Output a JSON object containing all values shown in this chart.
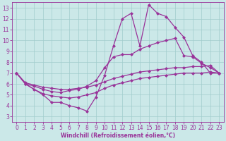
{
  "background_color": "#cbe8e8",
  "grid_color": "#a0cccc",
  "line_color": "#993399",
  "xlabel": "Windchill (Refroidissement éolien,°C)",
  "xlim": [
    -0.5,
    23.5
  ],
  "ylim": [
    2.5,
    13.5
  ],
  "yticks": [
    3,
    4,
    5,
    6,
    7,
    8,
    9,
    10,
    11,
    12,
    13
  ],
  "xticks": [
    0,
    1,
    2,
    3,
    4,
    5,
    6,
    7,
    8,
    9,
    10,
    11,
    12,
    13,
    14,
    15,
    16,
    17,
    18,
    19,
    20,
    21,
    22,
    23
  ],
  "lines": [
    {
      "x": [
        0,
        1,
        2,
        3,
        4,
        5,
        6,
        7,
        8,
        9,
        10,
        11,
        12,
        13,
        14,
        15,
        16,
        17,
        18,
        19,
        20,
        21,
        22,
        23
      ],
      "y": [
        7.0,
        6.0,
        5.8,
        5.5,
        5.3,
        5.2,
        5.4,
        5.5,
        5.8,
        6.3,
        7.5,
        8.5,
        8.7,
        8.7,
        9.2,
        9.5,
        9.8,
        10.0,
        10.2,
        8.6,
        8.5,
        7.9,
        7.5,
        7.0
      ]
    },
    {
      "x": [
        0,
        1,
        2,
        3,
        4,
        5,
        6,
        7,
        8,
        9,
        10,
        11,
        12,
        13,
        14,
        15,
        16,
        17,
        18,
        19,
        20,
        21,
        22,
        23
      ],
      "y": [
        7.0,
        6.1,
        5.9,
        5.7,
        5.6,
        5.5,
        5.5,
        5.6,
        5.7,
        5.9,
        6.2,
        6.5,
        6.7,
        6.9,
        7.1,
        7.2,
        7.3,
        7.4,
        7.5,
        7.5,
        7.6,
        7.6,
        7.7,
        7.0
      ]
    },
    {
      "x": [
        0,
        1,
        3,
        4,
        5,
        6,
        7,
        8,
        9,
        10,
        11,
        12,
        13,
        14,
        15,
        16,
        17,
        18,
        19,
        20,
        21,
        22,
        23
      ],
      "y": [
        7.0,
        6.0,
        5.0,
        4.3,
        4.3,
        4.0,
        3.8,
        3.5,
        4.8,
        6.8,
        9.5,
        12.0,
        12.5,
        9.5,
        13.3,
        12.5,
        12.2,
        11.2,
        10.3,
        8.6,
        8.0,
        7.0,
        7.0
      ]
    },
    {
      "x": [
        0,
        1,
        2,
        3,
        4,
        5,
        6,
        7,
        8,
        9,
        10,
        11,
        12,
        13,
        14,
        15,
        16,
        17,
        18,
        19,
        20,
        21,
        22,
        23
      ],
      "y": [
        7.0,
        6.0,
        5.5,
        5.1,
        4.9,
        4.8,
        4.7,
        4.8,
        5.0,
        5.2,
        5.6,
        5.9,
        6.1,
        6.3,
        6.5,
        6.6,
        6.7,
        6.8,
        6.9,
        7.0,
        7.0,
        7.0,
        7.1,
        7.0
      ]
    }
  ],
  "marker": "D",
  "markersize": 2.0,
  "linewidth": 0.9,
  "xlabel_fontsize": 5.5,
  "tick_fontsize": 5.5
}
